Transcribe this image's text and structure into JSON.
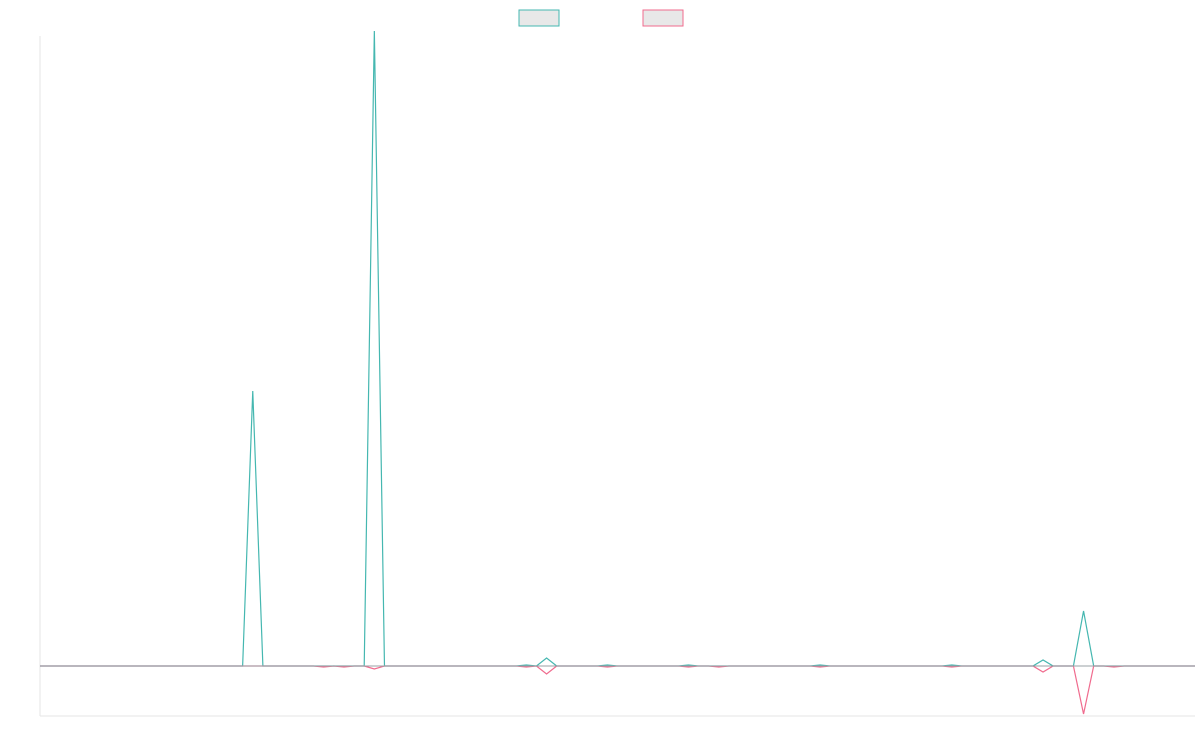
{
  "chart_data": {
    "type": "line",
    "title": "",
    "xlabel": "",
    "ylabel": "",
    "grid": false,
    "legend_position": "top-center",
    "x_count": 115,
    "ylim": [
      -50,
      630
    ],
    "series": [
      {
        "color": "#45b7b0",
        "legend_fill": "#e8e8e8",
        "points": [
          {
            "x": 0,
            "y": 0
          },
          {
            "x": 20,
            "y": 0
          },
          {
            "x": 21,
            "y": 275
          },
          {
            "x": 22,
            "y": 0
          },
          {
            "x": 32,
            "y": 0
          },
          {
            "x": 33,
            "y": 635
          },
          {
            "x": 34,
            "y": 0
          },
          {
            "x": 47,
            "y": 0
          },
          {
            "x": 48,
            "y": 1
          },
          {
            "x": 49,
            "y": 0
          },
          {
            "x": 49,
            "y": 0
          },
          {
            "x": 50,
            "y": 8
          },
          {
            "x": 51,
            "y": 0
          },
          {
            "x": 55,
            "y": 0
          },
          {
            "x": 56,
            "y": 1
          },
          {
            "x": 57,
            "y": 0
          },
          {
            "x": 63,
            "y": 0
          },
          {
            "x": 64,
            "y": 1
          },
          {
            "x": 65,
            "y": 0
          },
          {
            "x": 76,
            "y": 0
          },
          {
            "x": 77,
            "y": 1
          },
          {
            "x": 78,
            "y": 0
          },
          {
            "x": 89,
            "y": 0
          },
          {
            "x": 90,
            "y": 1
          },
          {
            "x": 91,
            "y": 0
          },
          {
            "x": 98,
            "y": 0
          },
          {
            "x": 99,
            "y": 6
          },
          {
            "x": 100,
            "y": 0
          },
          {
            "x": 102,
            "y": 0
          },
          {
            "x": 103,
            "y": 55
          },
          {
            "x": 104,
            "y": 0
          },
          {
            "x": 114,
            "y": 0
          }
        ]
      },
      {
        "color": "#f06b8e",
        "legend_fill": "#e8e8e8",
        "points": [
          {
            "x": 0,
            "y": 0
          },
          {
            "x": 27,
            "y": 0
          },
          {
            "x": 28,
            "y": -1
          },
          {
            "x": 29,
            "y": 0
          },
          {
            "x": 29,
            "y": 0
          },
          {
            "x": 30,
            "y": -1
          },
          {
            "x": 31,
            "y": 0
          },
          {
            "x": 32,
            "y": 0
          },
          {
            "x": 33,
            "y": -3
          },
          {
            "x": 34,
            "y": 0
          },
          {
            "x": 47,
            "y": 0
          },
          {
            "x": 48,
            "y": -1
          },
          {
            "x": 49,
            "y": 0
          },
          {
            "x": 49,
            "y": 0
          },
          {
            "x": 50,
            "y": -8
          },
          {
            "x": 51,
            "y": 0
          },
          {
            "x": 55,
            "y": 0
          },
          {
            "x": 56,
            "y": -1
          },
          {
            "x": 57,
            "y": 0
          },
          {
            "x": 63,
            "y": 0
          },
          {
            "x": 64,
            "y": -1
          },
          {
            "x": 65,
            "y": 0
          },
          {
            "x": 66,
            "y": 0
          },
          {
            "x": 67,
            "y": -1
          },
          {
            "x": 68,
            "y": 0
          },
          {
            "x": 76,
            "y": 0
          },
          {
            "x": 77,
            "y": -1
          },
          {
            "x": 78,
            "y": 0
          },
          {
            "x": 89,
            "y": 0
          },
          {
            "x": 90,
            "y": -1
          },
          {
            "x": 91,
            "y": 0
          },
          {
            "x": 98,
            "y": 0
          },
          {
            "x": 99,
            "y": -6
          },
          {
            "x": 100,
            "y": 0
          },
          {
            "x": 102,
            "y": 0
          },
          {
            "x": 103,
            "y": -48
          },
          {
            "x": 104,
            "y": 0
          },
          {
            "x": 105,
            "y": 0
          },
          {
            "x": 106,
            "y": -1
          },
          {
            "x": 107,
            "y": 0
          },
          {
            "x": 114,
            "y": 0
          }
        ]
      }
    ],
    "axis_color": "#e6e6e6",
    "baseline_color": "#9aa0a6"
  }
}
